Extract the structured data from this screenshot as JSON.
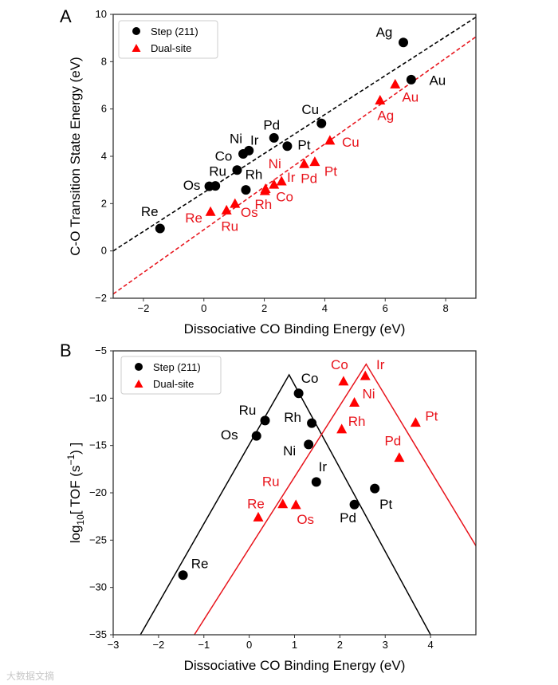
{
  "chart_data": [
    {
      "type": "scatter",
      "panel_label": "A",
      "xlabel": "Dissociative CO Binding Energy (eV)",
      "ylabel": "C-O Transition State Energy (eV)",
      "xlim": [
        -3,
        9
      ],
      "ylim": [
        -2,
        10
      ],
      "xticks": [
        -2,
        0,
        2,
        4,
        6,
        8
      ],
      "yticks": [
        -2,
        0,
        2,
        4,
        6,
        8,
        10
      ],
      "legend_position": "top-left",
      "series": [
        {
          "name": "Step (211)",
          "marker": "circle",
          "color": "#000000",
          "fit_line": {
            "style": "dashed",
            "x": [
              -3,
              9
            ],
            "y": [
              0.0,
              9.88
            ]
          },
          "points": [
            {
              "label": "Ag",
              "x": 6.6,
              "y": 8.81
            },
            {
              "label": "Au",
              "x": 6.86,
              "y": 7.24
            },
            {
              "label": "Cu",
              "x": 3.89,
              "y": 5.39
            },
            {
              "label": "Pd",
              "x": 2.32,
              "y": 4.78
            },
            {
              "label": "Pt",
              "x": 2.76,
              "y": 4.43
            },
            {
              "label": "Ir",
              "x": 1.49,
              "y": 4.24
            },
            {
              "label": "Ni",
              "x": 1.3,
              "y": 4.1
            },
            {
              "label": "Co",
              "x": 1.1,
              "y": 3.42
            },
            {
              "label": "Ru",
              "x": 0.38,
              "y": 2.75
            },
            {
              "label": "Os",
              "x": 0.18,
              "y": 2.73
            },
            {
              "label": "Rh",
              "x": 1.39,
              "y": 2.58
            },
            {
              "label": "Re",
              "x": -1.45,
              "y": 0.95
            }
          ]
        },
        {
          "name": "Dual-site",
          "marker": "triangle",
          "color": "#ff0000",
          "fit_line": {
            "style": "dashed",
            "x": [
              -3,
              9
            ],
            "y": [
              -1.82,
              9.05
            ]
          },
          "points": [
            {
              "label": "Au",
              "x": 6.33,
              "y": 7.04
            },
            {
              "label": "Ag",
              "x": 5.83,
              "y": 6.36
            },
            {
              "label": "Cu",
              "x": 4.17,
              "y": 4.66
            },
            {
              "label": "Pt",
              "x": 3.67,
              "y": 3.76
            },
            {
              "label": "Pd",
              "x": 3.32,
              "y": 3.67
            },
            {
              "label": "Ir",
              "x": 2.57,
              "y": 2.94
            },
            {
              "label": "Ni",
              "x": 2.32,
              "y": 2.8
            },
            {
              "label": "Co",
              "x": 2.04,
              "y": 2.62
            },
            {
              "label": "Rh",
              "x": 2.02,
              "y": 2.53
            },
            {
              "label": "Os",
              "x": 1.03,
              "y": 1.99
            },
            {
              "label": "Ru",
              "x": 0.75,
              "y": 1.71
            },
            {
              "label": "Re",
              "x": 0.22,
              "y": 1.65
            }
          ]
        }
      ]
    },
    {
      "type": "scatter",
      "panel_label": "B",
      "xlabel": "Dissociative CO Binding Energy (eV)",
      "ylabel": "log10[TOF (s^-1)]",
      "ylabel_parts": {
        "log": "log",
        "sub": "10",
        "mid": "[ TOF (s",
        "sup": "−1",
        "end": ") ]"
      },
      "xlim": [
        -3,
        5
      ],
      "ylim": [
        -35,
        -5
      ],
      "xticks": [
        -3,
        -2,
        -1,
        0,
        1,
        2,
        3,
        4
      ],
      "yticks": [
        -5,
        -10,
        -15,
        -20,
        -25,
        -30,
        -35
      ],
      "legend_position": "top-left",
      "series": [
        {
          "name": "Step (211)",
          "marker": "circle",
          "color": "#000000",
          "volcano": {
            "x": [
              -2.4,
              0.88,
              4.0
            ],
            "y": [
              -35,
              -7.53,
              -35
            ]
          },
          "points": [
            {
              "label": "Co",
              "x": 1.09,
              "y": -9.49
            },
            {
              "label": "Ru",
              "x": 0.35,
              "y": -12.36
            },
            {
              "label": "Os",
              "x": 0.16,
              "y": -13.99
            },
            {
              "label": "Rh",
              "x": 1.38,
              "y": -12.64
            },
            {
              "label": "Ni",
              "x": 1.31,
              "y": -14.89
            },
            {
              "label": "Ir",
              "x": 1.48,
              "y": -18.85
            },
            {
              "label": "Pt",
              "x": 2.77,
              "y": -19.55
            },
            {
              "label": "Pd",
              "x": 2.32,
              "y": -21.24
            },
            {
              "label": "Re",
              "x": -1.46,
              "y": -28.7
            }
          ]
        },
        {
          "name": "Dual-site",
          "marker": "triangle",
          "color": "#ff0000",
          "volcano": {
            "x": [
              -1.21,
              2.58,
              5.0
            ],
            "y": [
              -35,
              -6.4,
              -25.6
            ]
          },
          "points": [
            {
              "label": "Co",
              "x": 2.08,
              "y": -8.23
            },
            {
              "label": "Ir",
              "x": 2.56,
              "y": -7.67
            },
            {
              "label": "Ni",
              "x": 2.32,
              "y": -10.48
            },
            {
              "label": "Rh",
              "x": 2.04,
              "y": -13.29
            },
            {
              "label": "Pt",
              "x": 3.67,
              "y": -12.6
            },
            {
              "label": "Pd",
              "x": 3.31,
              "y": -16.3
            },
            {
              "label": "Ru",
              "x": 0.74,
              "y": -21.2
            },
            {
              "label": "Os",
              "x": 1.03,
              "y": -21.3
            },
            {
              "label": "Re",
              "x": 0.2,
              "y": -22.6
            }
          ]
        }
      ]
    }
  ],
  "watermark": "大数据文摘"
}
